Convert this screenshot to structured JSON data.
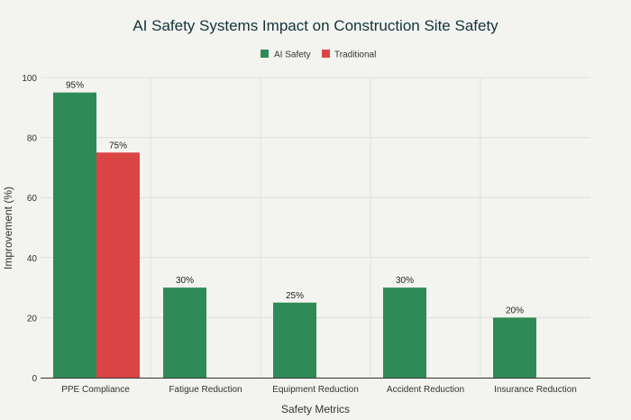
{
  "colors": {
    "background": "#f3f3ef",
    "ai_safety": "#2e8b57",
    "traditional": "#db4545",
    "grid": "#e0e0dc",
    "axis": "#333333",
    "text": "#13343b"
  },
  "chart_data": {
    "type": "bar",
    "title": "AI Safety Systems Impact on Construction Site Safety",
    "xlabel": "Safety Metrics",
    "ylabel": "Improvement (%)",
    "ylim": [
      0,
      100
    ],
    "yticks": [
      0,
      20,
      40,
      60,
      80,
      100
    ],
    "grid": true,
    "legend_position": "top-center",
    "categories": [
      "PPE Compliance",
      "Fatigue Reduction",
      "Equipment Reduction",
      "Accident Reduction",
      "Insurance Reduction"
    ],
    "series": [
      {
        "name": "AI Safety",
        "color": "#2e8b57",
        "values": [
          95,
          30,
          25,
          30,
          20
        ],
        "labels": [
          "95%",
          "30%",
          "25%",
          "30%",
          "20%"
        ]
      },
      {
        "name": "Traditional",
        "color": "#db4545",
        "values": [
          75,
          null,
          null,
          null,
          null
        ],
        "labels": [
          "75%",
          "",
          "",
          "",
          ""
        ]
      }
    ]
  }
}
